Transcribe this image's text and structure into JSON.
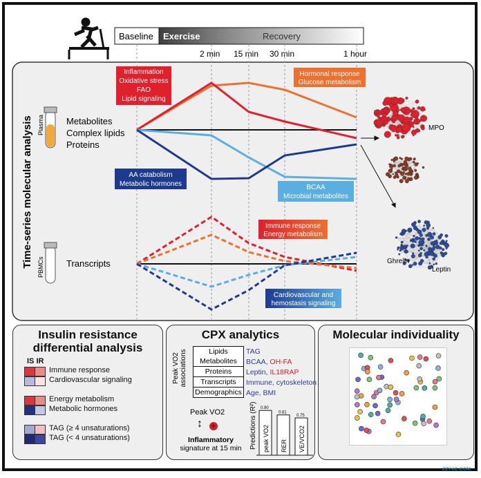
{
  "timeline": {
    "baseline": "Baseline",
    "exercise": "Exercise",
    "recovery": "Recovery",
    "timepoints": [
      "2 min",
      "15 min",
      "30 min",
      "1 hour"
    ]
  },
  "top_panel": {
    "side_label": "Time-series molecular analysis",
    "plasma_label": "Plasma",
    "plasma_analytes": [
      "Metabolites",
      "Complex lipids",
      "Proteins"
    ],
    "pbmc_label": "PBMCs",
    "pbmc_analytes": [
      "Transcripts"
    ],
    "boxes": {
      "red": [
        "Inflammation",
        "Oxidative stress",
        "FAO",
        "Lipid signaling"
      ],
      "orange": [
        "Hormonal response",
        "Glucose metabolism"
      ],
      "darkblue": [
        "AA catabolism",
        "Metabolic hormones"
      ],
      "lightblue": [
        "BCAA",
        "Microbial metabolites"
      ],
      "immune": [
        "Immune response",
        "Energy metabolism"
      ],
      "cardio": [
        "Cardiovascular and",
        "hemostasis signaling"
      ]
    },
    "network_labels": {
      "mpo": "MPO",
      "ghrelin": "Ghrelin",
      "leptin": "Leptin"
    },
    "colors": {
      "red": "#e0202c",
      "orange": "#ec7030",
      "darkblue": "#1e3a8f",
      "lightblue": "#5aaee0"
    }
  },
  "insulin": {
    "title": "Insulin resistance differential analysis",
    "col_labels": "IS IR",
    "groups": [
      {
        "rows": [
          {
            "label": "Immune response",
            "colors": [
              "#d63a40",
              "#e98a8c"
            ]
          },
          {
            "label": "Cardiovascular signaling",
            "colors": [
              "#b8bcdc",
              "#fbe3e3"
            ]
          }
        ]
      },
      {
        "rows": [
          {
            "label": "Energy metabolism",
            "colors": [
              "#d63a40",
              "#e98a8c"
            ]
          },
          {
            "label": "Metabolic hormones",
            "colors": [
              "#23307f",
              "#c4c8e6"
            ]
          }
        ]
      },
      {
        "rows": [
          {
            "label": "TAG (≥ 4 unsaturations)",
            "colors": [
              "#a3a9d3",
              "#f3c0c2"
            ]
          },
          {
            "label": "TAG (< 4 unsaturations)",
            "colors": [
              "#1f2a74",
              "#3c48a0"
            ]
          }
        ]
      }
    ]
  },
  "cpx": {
    "title": "CPX analytics",
    "axis_label": "Peak VO2 associations",
    "rows": [
      {
        "category": "Lipids",
        "blue": "TAG",
        "red": ""
      },
      {
        "category": "Metabolites",
        "blue": "BCAA, ",
        "red": "OH-FA"
      },
      {
        "category": "Proteins",
        "blue": "Leptin, ",
        "red": "IL18RAP"
      },
      {
        "category": "Transcripts",
        "blue": "Immune, cytoskeleton",
        "red": ""
      },
      {
        "category": "Demographics",
        "blue": "Age, BMI",
        "red": ""
      }
    ],
    "peak_label": "Peak VO2",
    "inflam_label": [
      "Inflammatory",
      "signature at 15 min"
    ],
    "predictions_label": "Predictions (R²)",
    "bars": [
      {
        "name": "peak VO2",
        "value": 0.9,
        "label": "0.90"
      },
      {
        "name": "RER",
        "value": 0.81,
        "label": "0.81"
      },
      {
        "name": "VE/VCO2",
        "value": 0.75,
        "label": "0.75"
      }
    ]
  },
  "individuality": {
    "title": "Molecular individuality"
  },
  "watermark": "ZZYKC.COM"
}
